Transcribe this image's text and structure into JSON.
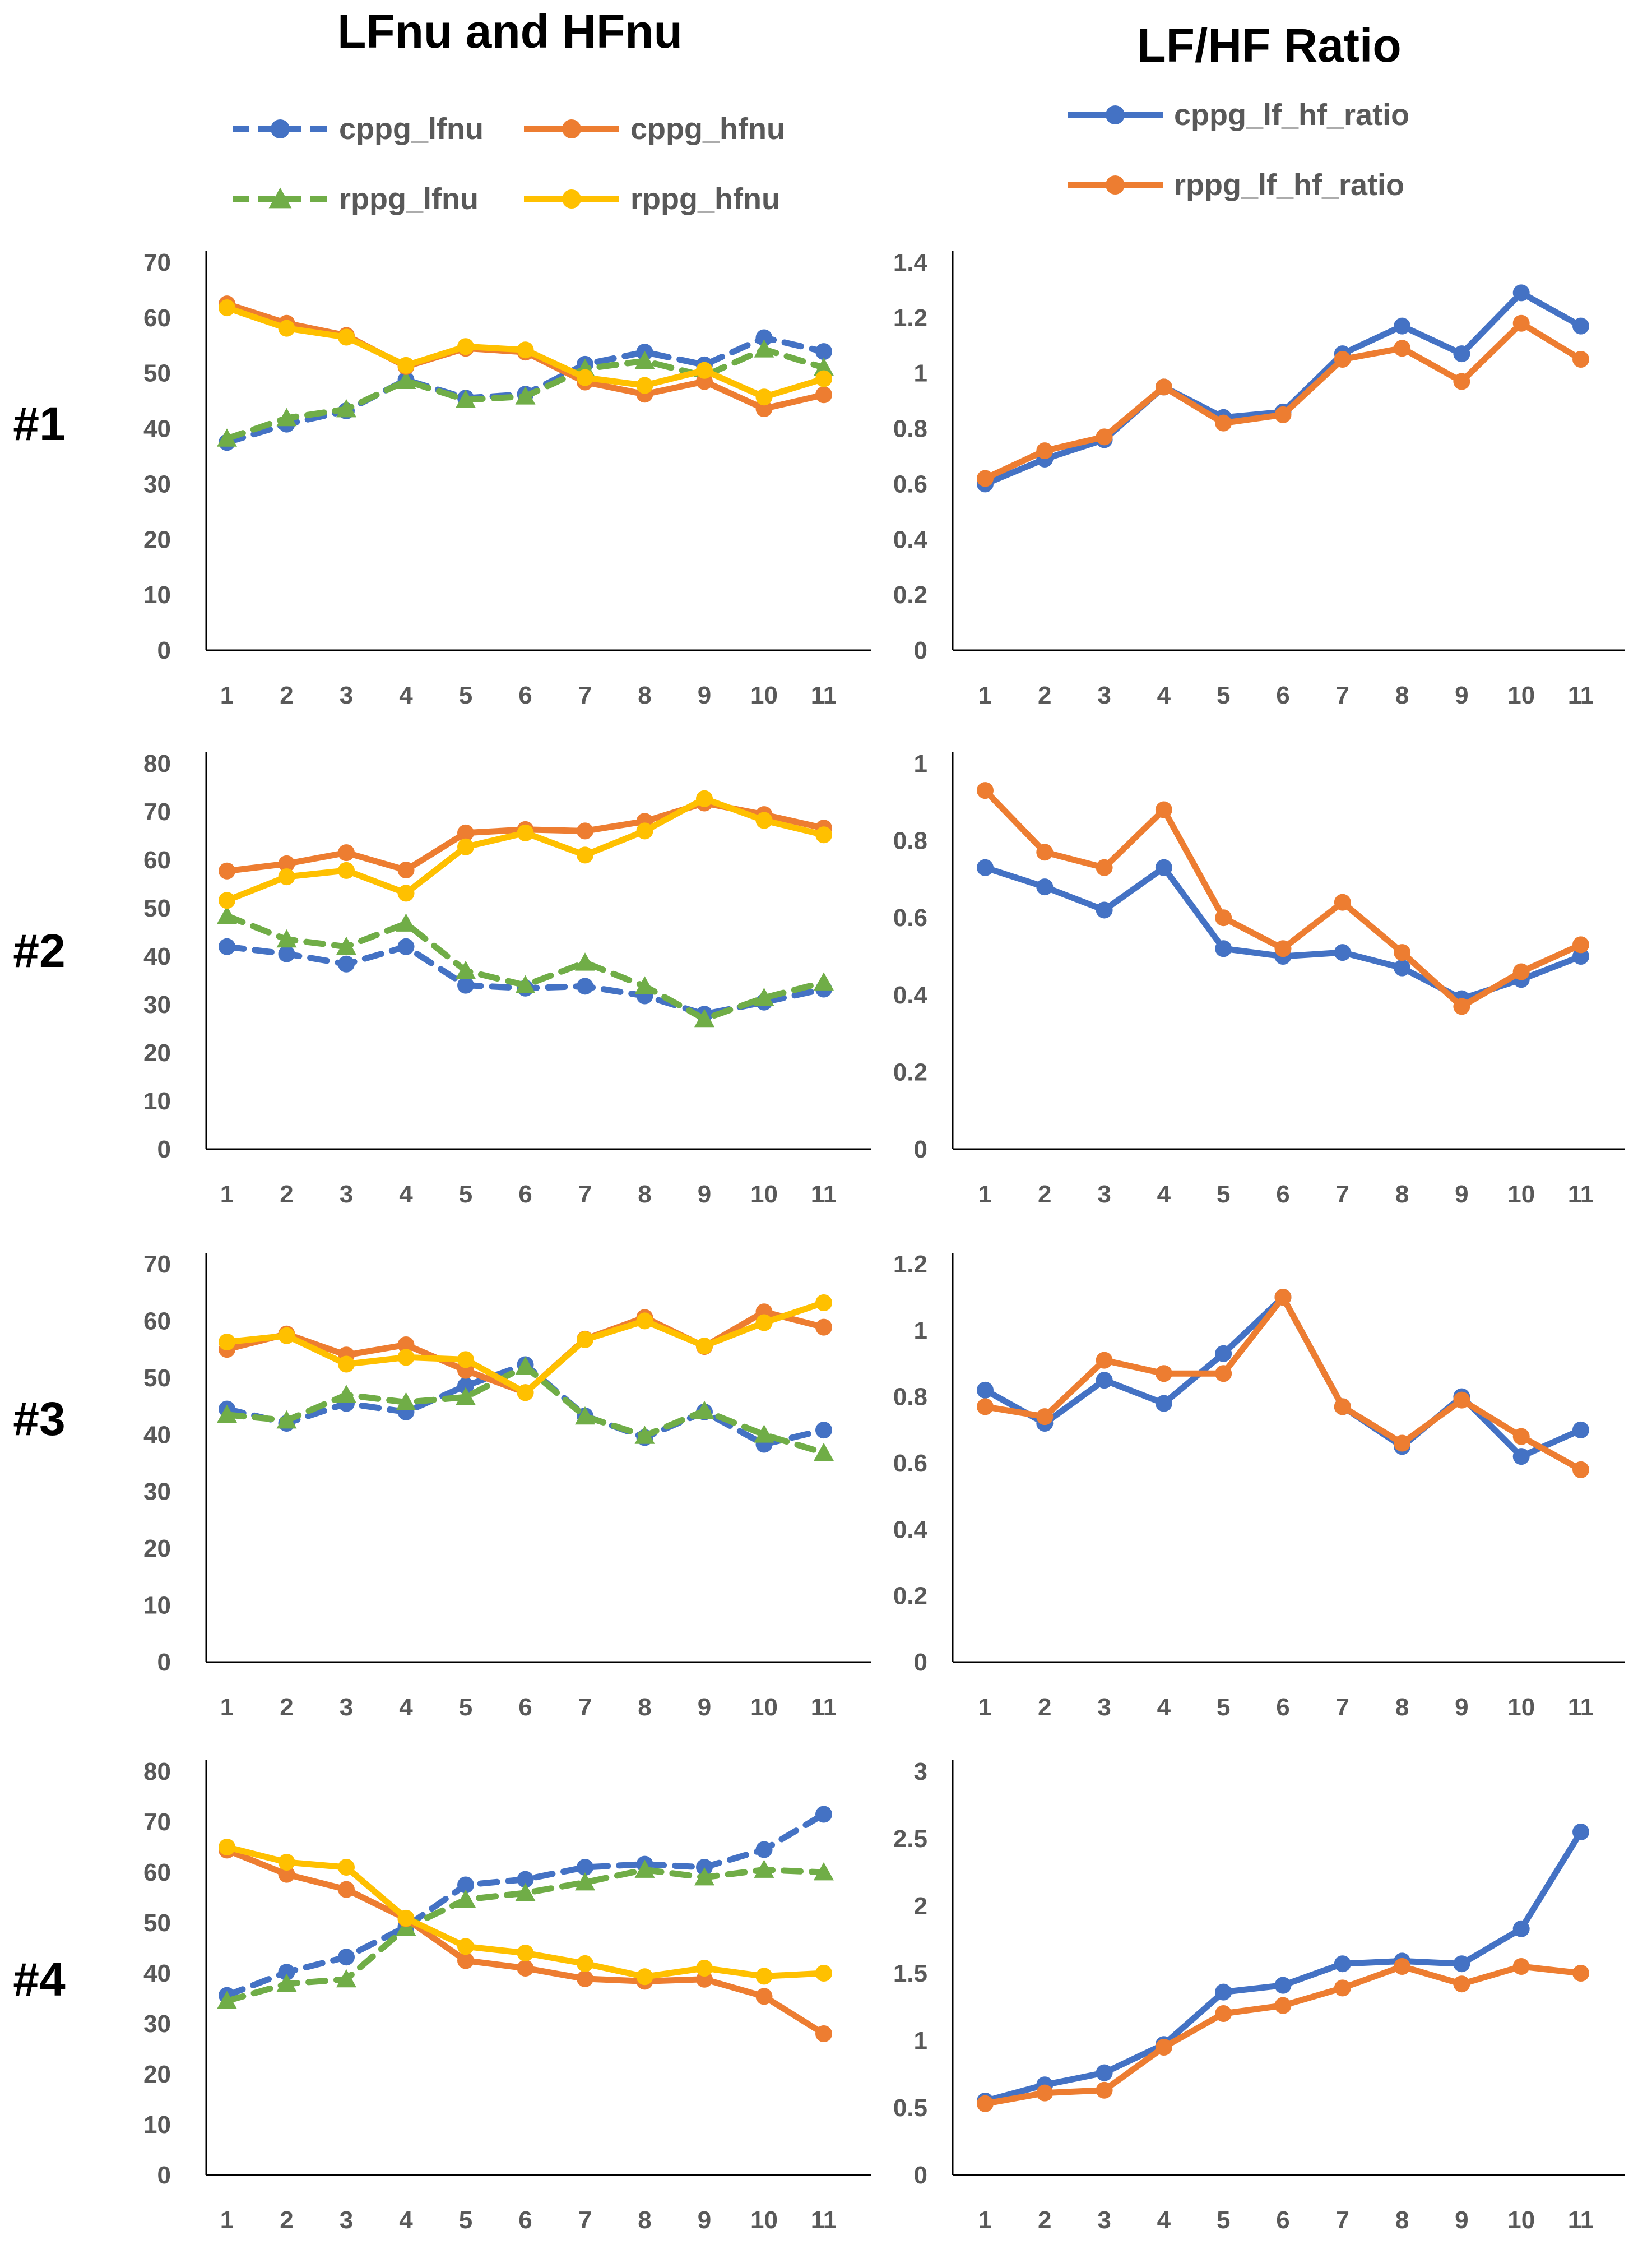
{
  "column_titles": {
    "left": "LFnu and HFnu",
    "right": "LF/HF Ratio"
  },
  "legend": {
    "left": [
      {
        "key": "cppg_lfnu",
        "label": "cppg_lfnu"
      },
      {
        "key": "cppg_hfnu",
        "label": "cppg_hfnu"
      },
      {
        "key": "rppg_lfnu",
        "label": "rppg_lfnu"
      },
      {
        "key": "rppg_hfnu",
        "label": "rppg_hfnu"
      }
    ],
    "right": [
      {
        "key": "cppg_lf_hf_ratio",
        "label": "cppg_lf_hf_ratio"
      },
      {
        "key": "rppg_lf_hf_ratio",
        "label": "rppg_lf_hf_ratio"
      }
    ]
  },
  "series_style": {
    "cppg_lfnu": {
      "color": "#4472C4",
      "dash": true,
      "marker": "circle"
    },
    "cppg_hfnu": {
      "color": "#ED7D31",
      "dash": false,
      "marker": "circle"
    },
    "rppg_lfnu": {
      "color": "#70AD47",
      "dash": true,
      "marker": "triangle"
    },
    "rppg_hfnu": {
      "color": "#FFC000",
      "dash": false,
      "marker": "circle"
    },
    "cppg_lf_hf_ratio": {
      "color": "#4472C4",
      "dash": false,
      "marker": "circle"
    },
    "rppg_lf_hf_ratio": {
      "color": "#ED7D31",
      "dash": false,
      "marker": "circle"
    }
  },
  "chart_data": [
    {
      "id": "p1-nu",
      "row_label": "#1",
      "type": "line",
      "title": "LFnu and HFnu",
      "xlabel": "",
      "ylabel": "",
      "x": [
        1,
        2,
        3,
        4,
        5,
        6,
        7,
        8,
        9,
        10,
        11
      ],
      "ylim": [
        0,
        70
      ],
      "yticks": [
        "0",
        "10",
        "20",
        "30",
        "40",
        "50",
        "60",
        "70"
      ],
      "grid": false,
      "series": [
        {
          "key": "cppg_lfnu",
          "name": "cppg_lfnu",
          "values": [
            37.5,
            40.8,
            43.2,
            48.8,
            45.5,
            46.2,
            51.6,
            53.8,
            51.5,
            56.4,
            53.9
          ]
        },
        {
          "key": "rppg_lfnu",
          "name": "rppg_lfnu",
          "values": [
            38.2,
            41.9,
            43.5,
            48.6,
            45.2,
            45.8,
            50.8,
            52.2,
            49.5,
            54.3,
            51.0
          ]
        },
        {
          "key": "cppg_hfnu",
          "name": "cppg_hfnu",
          "values": [
            62.5,
            59.0,
            56.8,
            51.2,
            54.5,
            53.8,
            48.4,
            46.2,
            48.5,
            43.6,
            46.1
          ]
        },
        {
          "key": "rppg_hfnu",
          "name": "rppg_hfnu",
          "values": [
            61.8,
            58.1,
            56.5,
            51.4,
            54.8,
            54.2,
            49.2,
            47.8,
            50.5,
            45.7,
            49.0
          ]
        }
      ]
    },
    {
      "id": "p1-ratio",
      "row_label": "#1",
      "type": "line",
      "title": "LF/HF Ratio",
      "xlabel": "",
      "ylabel": "",
      "x": [
        1,
        2,
        3,
        4,
        5,
        6,
        7,
        8,
        9,
        10,
        11
      ],
      "ylim": [
        0,
        1.4
      ],
      "yticks": [
        "0",
        "0.2",
        "0.4",
        "0.6",
        "0.8",
        "1",
        "1.2",
        "1.4"
      ],
      "grid": false,
      "series": [
        {
          "key": "cppg_lf_hf_ratio",
          "name": "cppg_lf_hf_ratio",
          "values": [
            0.6,
            0.69,
            0.76,
            0.95,
            0.84,
            0.86,
            1.07,
            1.17,
            1.07,
            1.29,
            1.17
          ]
        },
        {
          "key": "rppg_lf_hf_ratio",
          "name": "rppg_lf_hf_ratio",
          "values": [
            0.62,
            0.72,
            0.77,
            0.95,
            0.82,
            0.85,
            1.05,
            1.09,
            0.97,
            1.18,
            1.05
          ]
        }
      ]
    },
    {
      "id": "p2-nu",
      "row_label": "#2",
      "type": "line",
      "title": "LFnu and HFnu",
      "xlabel": "",
      "ylabel": "",
      "x": [
        1,
        2,
        3,
        4,
        5,
        6,
        7,
        8,
        9,
        10,
        11
      ],
      "ylim": [
        0,
        80
      ],
      "yticks": [
        "0",
        "10",
        "20",
        "30",
        "40",
        "50",
        "60",
        "70",
        "80"
      ],
      "grid": false,
      "series": [
        {
          "key": "cppg_lfnu",
          "name": "cppg_lfnu",
          "values": [
            42.0,
            40.5,
            38.4,
            42.0,
            34.0,
            33.4,
            33.8,
            31.8,
            28.0,
            30.5,
            33.2
          ]
        },
        {
          "key": "rppg_lfnu",
          "name": "rppg_lfnu",
          "values": [
            48.4,
            43.5,
            42.0,
            46.8,
            37.0,
            34.0,
            38.7,
            33.8,
            27.0,
            31.4,
            34.6
          ]
        },
        {
          "key": "cppg_hfnu",
          "name": "cppg_hfnu",
          "values": [
            57.7,
            59.2,
            61.5,
            57.9,
            65.6,
            66.3,
            66.0,
            68.0,
            71.8,
            69.4,
            66.6
          ]
        },
        {
          "key": "rppg_hfnu",
          "name": "rppg_hfnu",
          "values": [
            51.6,
            56.5,
            57.8,
            53.1,
            62.7,
            65.6,
            61.0,
            66.0,
            72.7,
            68.2,
            65.2
          ]
        }
      ]
    },
    {
      "id": "p2-ratio",
      "row_label": "#2",
      "type": "line",
      "title": "LF/HF Ratio",
      "xlabel": "",
      "ylabel": "",
      "x": [
        1,
        2,
        3,
        4,
        5,
        6,
        7,
        8,
        9,
        10,
        11
      ],
      "ylim": [
        0,
        1
      ],
      "yticks": [
        "0",
        "0.2",
        "0.4",
        "0.6",
        "0.8",
        "1"
      ],
      "grid": false,
      "series": [
        {
          "key": "cppg_lf_hf_ratio",
          "name": "cppg_lf_hf_ratio",
          "values": [
            0.73,
            0.68,
            0.62,
            0.73,
            0.52,
            0.5,
            0.51,
            0.47,
            0.39,
            0.44,
            0.5
          ]
        },
        {
          "key": "rppg_lf_hf_ratio",
          "name": "rppg_lf_hf_ratio",
          "values": [
            0.93,
            0.77,
            0.73,
            0.88,
            0.6,
            0.52,
            0.64,
            0.51,
            0.37,
            0.46,
            0.53
          ]
        }
      ]
    },
    {
      "id": "p3-nu",
      "row_label": "#3",
      "type": "line",
      "title": "LFnu and HFnu",
      "xlabel": "",
      "ylabel": "",
      "x": [
        1,
        2,
        3,
        4,
        5,
        6,
        7,
        8,
        9,
        10,
        11
      ],
      "ylim": [
        0,
        70
      ],
      "yticks": [
        "0",
        "10",
        "20",
        "30",
        "40",
        "50",
        "60",
        "70"
      ],
      "grid": false,
      "series": [
        {
          "key": "cppg_lfnu",
          "name": "cppg_lfnu",
          "values": [
            44.5,
            42.0,
            45.5,
            44.0,
            48.6,
            52.3,
            43.3,
            39.5,
            44.0,
            38.3,
            40.8
          ]
        },
        {
          "key": "rppg_lfnu",
          "name": "rppg_lfnu",
          "values": [
            43.5,
            42.5,
            47.0,
            45.7,
            46.6,
            52.0,
            43.2,
            39.8,
            44.2,
            40.0,
            36.8
          ]
        },
        {
          "key": "cppg_hfnu",
          "name": "cppg_hfnu",
          "values": [
            55.0,
            57.7,
            54.0,
            55.8,
            51.3,
            47.4,
            56.8,
            60.6,
            55.5,
            61.6,
            58.9
          ]
        },
        {
          "key": "rppg_hfnu",
          "name": "rppg_hfnu",
          "values": [
            56.3,
            57.4,
            52.4,
            53.6,
            53.2,
            47.4,
            56.7,
            60.0,
            55.6,
            59.7,
            63.2
          ]
        }
      ]
    },
    {
      "id": "p3-ratio",
      "row_label": "#3",
      "type": "line",
      "title": "LF/HF Ratio",
      "xlabel": "",
      "ylabel": "",
      "x": [
        1,
        2,
        3,
        4,
        5,
        6,
        7,
        8,
        9,
        10,
        11
      ],
      "ylim": [
        0,
        1.2
      ],
      "yticks": [
        "0",
        "0.2",
        "0.4",
        "0.6",
        "0.8",
        "1",
        "1.2"
      ],
      "grid": false,
      "series": [
        {
          "key": "cppg_lf_hf_ratio",
          "name": "cppg_lf_hf_ratio",
          "values": [
            0.82,
            0.72,
            0.85,
            0.78,
            0.93,
            1.1,
            0.77,
            0.65,
            0.8,
            0.62,
            0.7
          ]
        },
        {
          "key": "rppg_lf_hf_ratio",
          "name": "rppg_lf_hf_ratio",
          "values": [
            0.77,
            0.74,
            0.91,
            0.87,
            0.87,
            1.1,
            0.77,
            0.66,
            0.79,
            0.68,
            0.58
          ]
        }
      ]
    },
    {
      "id": "p4-nu",
      "row_label": "#4",
      "type": "line",
      "title": "LFnu and HFnu",
      "xlabel": "",
      "ylabel": "",
      "x": [
        1,
        2,
        3,
        4,
        5,
        6,
        7,
        8,
        9,
        10,
        11
      ],
      "ylim": [
        0,
        80
      ],
      "yticks": [
        "0",
        "10",
        "20",
        "30",
        "40",
        "50",
        "60",
        "70",
        "80"
      ],
      "grid": false,
      "series": [
        {
          "key": "cppg_lfnu",
          "name": "cppg_lfnu",
          "values": [
            35.6,
            40.2,
            43.2,
            49.2,
            57.5,
            58.6,
            61.0,
            61.6,
            61.0,
            64.5,
            71.5
          ]
        },
        {
          "key": "rppg_lfnu",
          "name": "rppg_lfnu",
          "values": [
            34.5,
            37.9,
            38.8,
            49.0,
            54.6,
            55.9,
            58.0,
            60.5,
            59.0,
            60.5,
            60.0
          ]
        },
        {
          "key": "cppg_hfnu",
          "name": "cppg_hfnu",
          "values": [
            64.4,
            59.6,
            56.6,
            50.8,
            42.5,
            41.0,
            38.9,
            38.4,
            38.8,
            35.4,
            28.0
          ]
        },
        {
          "key": "rppg_hfnu",
          "name": "rppg_hfnu",
          "values": [
            65.0,
            62.0,
            61.0,
            50.9,
            45.3,
            44.0,
            41.9,
            39.3,
            41.0,
            39.4,
            40.0
          ]
        }
      ]
    },
    {
      "id": "p4-ratio",
      "row_label": "#4",
      "type": "line",
      "title": "LF/HF Ratio",
      "xlabel": "",
      "ylabel": "",
      "x": [
        1,
        2,
        3,
        4,
        5,
        6,
        7,
        8,
        9,
        10,
        11
      ],
      "ylim": [
        0,
        3
      ],
      "yticks": [
        "0",
        "0.5",
        "1",
        "1.5",
        "2",
        "2.5",
        "3"
      ],
      "grid": false,
      "series": [
        {
          "key": "cppg_lf_hf_ratio",
          "name": "cppg_lf_hf_ratio",
          "values": [
            0.55,
            0.67,
            0.76,
            0.97,
            1.36,
            1.41,
            1.57,
            1.59,
            1.57,
            1.83,
            2.55
          ]
        },
        {
          "key": "rppg_lf_hf_ratio",
          "name": "rppg_lf_hf_ratio",
          "values": [
            0.53,
            0.61,
            0.63,
            0.95,
            1.2,
            1.26,
            1.39,
            1.55,
            1.42,
            1.55,
            1.5
          ]
        }
      ]
    }
  ]
}
